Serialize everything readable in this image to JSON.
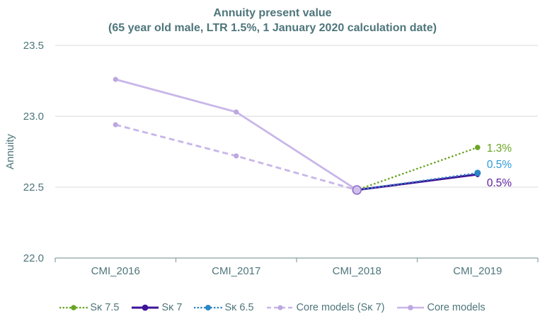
{
  "title": {
    "line1": "Annuity present value",
    "line2": "(65 year old male, LTR 1.5%, 1 January 2020 calculation date)"
  },
  "colors": {
    "title_text": "#4e767b",
    "axis_text": "#4e767b",
    "axis_line": "#8aa0a0",
    "gridline": "#d9d9d9",
    "green": "#6aa523",
    "dark_purple": "#3f1499",
    "blue": "#2d86c4",
    "lavender": "#c8b6e9",
    "lavender_marker": "#bda6e1",
    "convergence_fill": "#cfc0ec",
    "convergence_stroke": "#8f6fc6"
  },
  "chart_data": {
    "type": "line",
    "title": "Annuity present value",
    "subtitle": "(65 year old male, LTR 1.5%, 1 January 2020 calculation date)",
    "categories": [
      "CMI_2016",
      "CMI_2017",
      "CMI_2018",
      "CMI_2019"
    ],
    "ylabel": "Annuity",
    "ylim": [
      22.0,
      23.5
    ],
    "yticks": [
      22.0,
      22.5,
      23.0,
      23.5
    ],
    "grid": "horizontal",
    "legend_position": "bottom",
    "series": [
      {
        "name": "Sκ 7.5",
        "values": [
          null,
          null,
          22.48,
          22.78
        ],
        "color": "#6aa523",
        "label_color": "#6aa523",
        "style": "dotted",
        "end_label": "1.3%"
      },
      {
        "name": "Sκ 7",
        "values": [
          null,
          null,
          22.48,
          22.59
        ],
        "color": "#3f1499",
        "label_color": "#5c1d9e",
        "style": "solid",
        "end_label": "0.5%"
      },
      {
        "name": "Sκ 6.5",
        "values": [
          null,
          null,
          22.48,
          22.6
        ],
        "color": "#2d86c4",
        "label_color": "#2e9ad6",
        "style": "dotted",
        "end_label": "0.5%"
      },
      {
        "name": "Core models (Sκ 7)",
        "values": [
          22.94,
          22.72,
          22.48,
          null
        ],
        "color": "#c8b6e9",
        "style": "dashed"
      },
      {
        "name": "Core models",
        "values": [
          23.26,
          23.03,
          22.48,
          null
        ],
        "color": "#c8b6e9",
        "style": "solid"
      }
    ]
  }
}
